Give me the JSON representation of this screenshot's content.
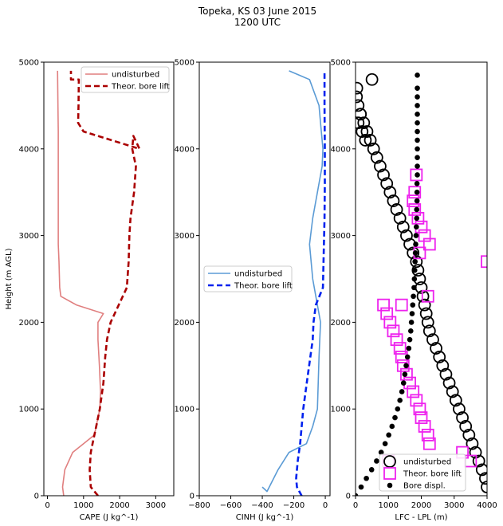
{
  "figure": {
    "title_line1": "Topeka, KS 03 June 2015",
    "title_line2": "1200 UTC"
  },
  "chart_data": [
    {
      "type": "line",
      "panel": "cape",
      "xlabel": "CAPE (J kg^-1)",
      "ylabel": "Height (m AGL)",
      "xlim": [
        -100,
        3500
      ],
      "ylim": [
        0,
        5000
      ],
      "xticks": [
        0,
        1000,
        2000,
        3000
      ],
      "yticks": [
        0,
        1000,
        2000,
        3000,
        4000,
        5000
      ],
      "legend_position": "upper right",
      "series": [
        {
          "name": "undisturbed",
          "color": "#e07f7f",
          "style": "solid",
          "x": [
            450,
            420,
            480,
            700,
            1000,
            1300,
            1450,
            1470,
            1440,
            1400,
            1400,
            1550,
            800,
            370,
            340,
            320,
            300,
            300,
            300,
            300,
            290,
            280
          ],
          "y": [
            0,
            100,
            300,
            500,
            600,
            700,
            1000,
            1200,
            1500,
            1800,
            2000,
            2100,
            2200,
            2300,
            2400,
            2700,
            2900,
            3500,
            4000,
            4200,
            4500,
            4900
          ]
        },
        {
          "name": "Theor. bore lift",
          "color": "#aa0000",
          "style": "dashed",
          "x": [
            1400,
            1200,
            1170,
            1200,
            1250,
            1350,
            1450,
            1550,
            1600,
            1650,
            1750,
            2200,
            2250,
            2270,
            2300,
            2400,
            2450,
            2400,
            2350,
            2380,
            2550,
            1000,
            850,
            860,
            870,
            650,
            650
          ],
          "y": [
            0,
            100,
            300,
            500,
            600,
            800,
            1000,
            1300,
            1600,
            1800,
            2000,
            2400,
            2700,
            3000,
            3200,
            3500,
            3800,
            3900,
            4000,
            4150,
            4000,
            4200,
            4300,
            4500,
            4800,
            4800,
            4900
          ]
        }
      ]
    },
    {
      "type": "line",
      "panel": "cinh",
      "xlabel": "CINH (J kg^-1)",
      "xlim": [
        -800,
        30
      ],
      "ylim": [
        0,
        5000
      ],
      "xticks": [
        -800,
        -600,
        -400,
        -200,
        0
      ],
      "legend_position": "center left",
      "series": [
        {
          "name": "undisturbed",
          "color": "#5b9bd5",
          "style": "solid",
          "x": [
            -400,
            -370,
            -300,
            -230,
            -120,
            -80,
            -50,
            -45,
            -40,
            -30,
            -60,
            -80,
            -100,
            -80,
            -50,
            -20,
            -15,
            -30,
            -40,
            -100,
            -230
          ],
          "y": [
            100,
            50,
            300,
            500,
            600,
            800,
            1000,
            1300,
            1600,
            2000,
            2300,
            2500,
            2900,
            3200,
            3500,
            3800,
            4000,
            4300,
            4500,
            4800,
            4900
          ]
        },
        {
          "name": "Theor. bore lift",
          "color": "#0022ee",
          "style": "dashed",
          "x": [
            -150,
            -180,
            -185,
            -175,
            -160,
            -140,
            -110,
            -80,
            -75,
            -60,
            -15,
            -10,
            -5,
            -3,
            -3,
            -5,
            -5
          ],
          "y": [
            0,
            100,
            200,
            400,
            600,
            1000,
            1400,
            1800,
            2000,
            2200,
            2400,
            2800,
            3200,
            3600,
            4000,
            4500,
            4900
          ]
        }
      ]
    },
    {
      "type": "scatter",
      "panel": "lfc",
      "xlabel": "LFC - LPL (m)",
      "xlim": [
        0,
        4000
      ],
      "ylim": [
        0,
        5000
      ],
      "xticks": [
        0,
        1000,
        2000,
        3000,
        4000
      ],
      "legend_position": "lower right",
      "series": [
        {
          "name": "undisturbed",
          "marker": "circle",
          "color": "#000000",
          "x": [
            4000,
            3950,
            3850,
            3750,
            3650,
            3550,
            3450,
            3350,
            3250,
            3150,
            3050,
            2950,
            2850,
            2750,
            2650,
            2550,
            2450,
            2350,
            2250,
            2200,
            2150,
            2100,
            2050,
            2000,
            1950,
            1900,
            1850,
            1750,
            1650,
            1550,
            1450,
            1350,
            1250,
            1150,
            1050,
            950,
            850,
            750,
            650,
            550,
            450,
            350,
            250,
            150,
            80,
            30,
            40,
            80,
            150,
            200,
            300,
            500
          ],
          "y": [
            100,
            200,
            300,
            400,
            500,
            600,
            700,
            800,
            900,
            1000,
            1100,
            1200,
            1300,
            1400,
            1500,
            1600,
            1700,
            1800,
            1900,
            2000,
            2100,
            2200,
            2300,
            2400,
            2500,
            2600,
            2700,
            2800,
            2900,
            3000,
            3100,
            3200,
            3300,
            3400,
            3500,
            3600,
            3700,
            3800,
            3900,
            4000,
            4100,
            4200,
            4300,
            4400,
            4500,
            4600,
            4700,
            4300,
            4400,
            4200,
            4100,
            4800
          ]
        },
        {
          "name": "Theor. bore lift",
          "marker": "square",
          "color": "#ee22ee",
          "x": [
            1000,
            3500,
            3250,
            2250,
            2200,
            2100,
            2000,
            1950,
            1850,
            1750,
            1650,
            1550,
            1450,
            1400,
            1350,
            1250,
            1150,
            1050,
            950,
            850,
            1400,
            2200,
            1950,
            2250,
            2100,
            2000,
            1900,
            1800,
            1750,
            1800,
            1850,
            4000
          ],
          "y": [
            400,
            400,
            500,
            600,
            700,
            800,
            900,
            1000,
            1100,
            1200,
            1300,
            1400,
            1500,
            1600,
            1700,
            1800,
            1900,
            2000,
            2100,
            2200,
            2200,
            2300,
            2800,
            2900,
            3000,
            3100,
            3200,
            3300,
            3400,
            3500,
            3700,
            2700
          ]
        },
        {
          "name": "Bore displ.",
          "marker": "dot",
          "color": "#000000",
          "x": [
            0,
            170,
            330,
            490,
            640,
            780,
            900,
            1010,
            1110,
            1200,
            1280,
            1350,
            1410,
            1460,
            1500,
            1540,
            1580,
            1620,
            1650,
            1680,
            1700,
            1720,
            1740,
            1760,
            1780,
            1790,
            1800,
            1810,
            1820,
            1830,
            1840,
            1850,
            1860,
            1860,
            1870,
            1870,
            1870,
            1880,
            1880,
            1880,
            1880,
            1880,
            1880,
            1880,
            1880,
            1880,
            1880,
            1880,
            1880
          ],
          "y": [
            0,
            100,
            200,
            300,
            400,
            500,
            600,
            700,
            800,
            900,
            1000,
            1100,
            1200,
            1300,
            1400,
            1500,
            1600,
            1700,
            1800,
            1900,
            2000,
            2100,
            2200,
            2300,
            2400,
            2500,
            2600,
            2700,
            2800,
            2900,
            3000,
            3100,
            3200,
            3300,
            3400,
            3500,
            3600,
            3700,
            3800,
            3900,
            4000,
            4100,
            4200,
            4300,
            4400,
            4500,
            4600,
            4700,
            4850
          ]
        }
      ]
    }
  ]
}
